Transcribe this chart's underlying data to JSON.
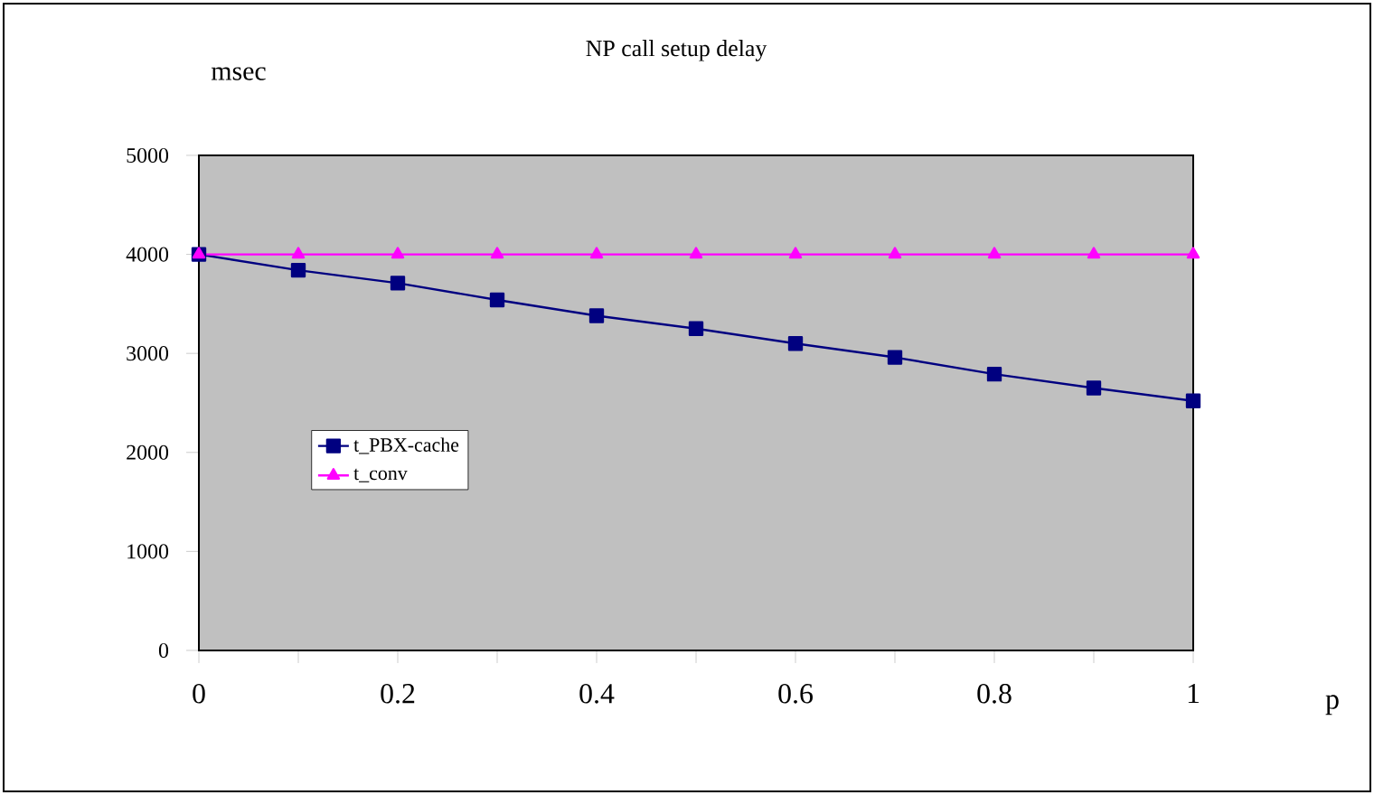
{
  "chart_data": {
    "type": "line",
    "title": "NP call setup delay",
    "xlabel": "p",
    "ylabel": "msec",
    "x": [
      0,
      0.1,
      0.2,
      0.3,
      0.4,
      0.5,
      0.6,
      0.7,
      0.8,
      0.9,
      1
    ],
    "series": [
      {
        "name": "t_PBX-cache",
        "color": "#000080",
        "marker": "square",
        "values": [
          4000,
          3840,
          3710,
          3540,
          3380,
          3250,
          3100,
          2960,
          2790,
          2650,
          2520
        ]
      },
      {
        "name": "t_conv",
        "color": "#ff00ff",
        "marker": "triangle",
        "values": [
          4000,
          4000,
          4000,
          4000,
          4000,
          4000,
          4000,
          4000,
          4000,
          4000,
          4000
        ]
      }
    ],
    "xlim": [
      0,
      1
    ],
    "xticks": [
      0,
      {
        "value": 0.1,
        "label": null
      },
      0.2,
      {
        "value": 0.3,
        "label": null
      },
      0.4,
      {
        "value": 0.5,
        "label": null
      },
      0.6,
      {
        "value": 0.7,
        "label": null
      },
      0.8,
      {
        "value": 0.9,
        "label": null
      },
      1
    ],
    "ylim": [
      0,
      5000
    ],
    "yticks": [
      0,
      1000,
      2000,
      3000,
      4000,
      5000
    ],
    "legend": "bottom left",
    "line_style": "solid"
  }
}
